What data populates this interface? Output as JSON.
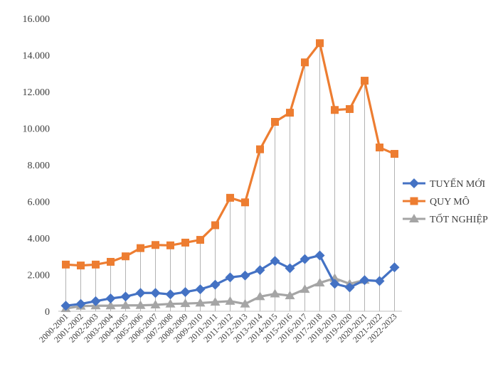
{
  "chart_data": {
    "type": "line",
    "title": "",
    "xlabel": "",
    "ylabel": "",
    "ylim": [
      0,
      16000
    ],
    "yticks": [
      0,
      2000,
      4000,
      6000,
      8000,
      10000,
      12000,
      14000,
      16000
    ],
    "ytick_labels": [
      "0",
      "2.000",
      "4.000",
      "6.000",
      "8.000",
      "10.000",
      "12.000",
      "14.000",
      "16.000"
    ],
    "grid": false,
    "drop_lines": true,
    "legend_position": "right",
    "categories": [
      "2000-2001",
      "2001-2002",
      "2002-2003",
      "2003-2004",
      "2004-2005",
      "2005-2006",
      "2006-2007",
      "2007-2008",
      "2008-2009",
      "2009-2010",
      "2010-2011",
      "2011-2012",
      "2012-2013",
      "2013-2014",
      "2014-2015",
      "2015-2016",
      "2016-2017",
      "2017-2018",
      "2018-2019",
      "2019-2020",
      "2020-2021",
      "2021-2022",
      "2022-2023"
    ],
    "series": [
      {
        "name": "TUYỂN MỚI",
        "color": "#4472c4",
        "marker": "diamond",
        "values": [
          300,
          400,
          550,
          700,
          800,
          1000,
          1000,
          920,
          1050,
          1200,
          1450,
          1850,
          1950,
          2250,
          2750,
          2350,
          2850,
          3050,
          1500,
          1300,
          1700,
          1650,
          2400
        ]
      },
      {
        "name": "QUY MÔ",
        "color": "#ed7d31",
        "marker": "square",
        "values": [
          2550,
          2500,
          2550,
          2700,
          3000,
          3450,
          3620,
          3600,
          3750,
          3900,
          4700,
          6200,
          5950,
          8850,
          10350,
          10850,
          13600,
          14650,
          11000,
          11050,
          12600,
          8950,
          8600
        ]
      },
      {
        "name": "TỐT NGHIỆP",
        "color": "#a5a5a5",
        "marker": "triangle",
        "values": [
          150,
          280,
          300,
          300,
          320,
          320,
          350,
          400,
          420,
          450,
          500,
          550,
          400,
          800,
          950,
          850,
          1200,
          1550,
          1800,
          1500,
          1700,
          null,
          null
        ]
      }
    ]
  }
}
